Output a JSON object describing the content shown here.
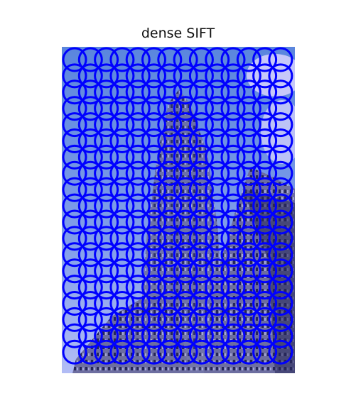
{
  "title": "dense SIFT",
  "image": {
    "description_tags": [
      "sky",
      "tower",
      "building"
    ],
    "keypoint_color": "#0000ff",
    "keypoint_shape": "circle",
    "grid": {
      "columns": 14,
      "rows": 19
    }
  },
  "colors": {
    "sky_top": "#6fa4d6",
    "sky_bottom": "#d9e6f3",
    "building": "#6d6f73",
    "building_dark": "#2f3035",
    "keypoint": "#0000ff"
  }
}
